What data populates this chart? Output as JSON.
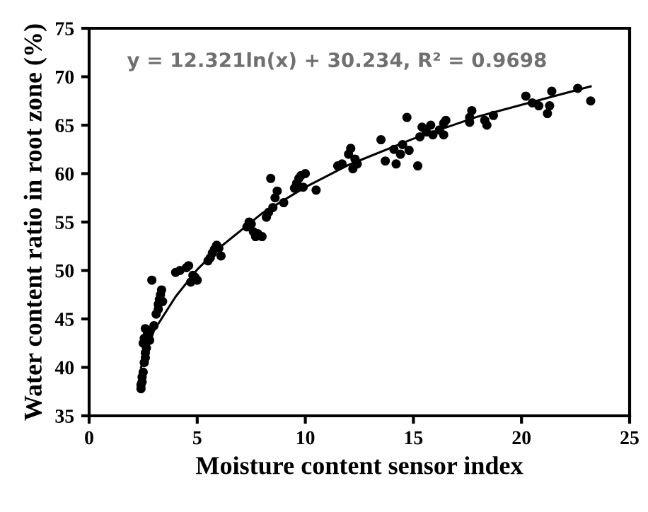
{
  "chart_data": {
    "type": "scatter",
    "xlabel": "Moisture content sensor index",
    "ylabel": "Water content ratio in root zone (%)",
    "annotations": [
      "y = 12.321ln(x) + 30.234, R² = 0.9698"
    ],
    "xlim": [
      0,
      25
    ],
    "ylim": [
      35,
      75
    ],
    "xticks": [
      0,
      5,
      10,
      15,
      20,
      25
    ],
    "yticks": [
      35,
      40,
      45,
      50,
      55,
      60,
      65,
      70,
      75
    ],
    "grid": false,
    "series": [
      {
        "color": "#000000",
        "marker": "circle",
        "x": [
          2.4,
          2.4,
          2.45,
          2.45,
          2.5,
          2.55,
          2.6,
          2.6,
          2.65,
          2.5,
          2.55,
          2.7,
          2.6,
          2.75,
          2.8,
          3.0,
          3.1,
          3.2,
          3.2,
          3.25,
          3.3,
          3.35,
          3.4,
          2.9,
          4.0,
          4.2,
          4.5,
          4.6,
          4.8,
          5.0,
          4.7,
          4.9,
          5.5,
          5.6,
          5.7,
          5.8,
          5.9,
          6.0,
          6.1,
          7.3,
          7.4,
          7.5,
          7.6,
          7.7,
          7.8,
          8.0,
          8.2,
          8.3,
          8.5,
          8.6,
          8.4,
          8.7,
          9.0,
          9.5,
          9.6,
          9.7,
          9.8,
          10.0,
          9.9,
          10.5,
          11.5,
          11.7,
          12.0,
          12.1,
          12.3,
          12.2,
          12.4,
          13.5,
          13.7,
          14.1,
          14.2,
          14.4,
          14.5,
          14.7,
          14.8,
          15.2,
          15.3,
          15.4,
          15.6,
          15.8,
          15.9,
          16.2,
          16.4,
          16.5,
          16.4,
          17.6,
          17.6,
          17.7,
          18.3,
          18.4,
          18.7,
          20.2,
          20.5,
          20.8,
          21.2,
          21.3,
          21.4,
          22.6,
          23.2
        ],
        "values": [
          37.8,
          38.2,
          38.5,
          39.0,
          39.5,
          40.5,
          41.0,
          41.5,
          42.0,
          42.5,
          43.0,
          43.5,
          44.0,
          43.8,
          42.8,
          44.3,
          45.5,
          46.0,
          46.5,
          47.0,
          47.5,
          48.0,
          46.8,
          49.0,
          49.8,
          50.0,
          50.3,
          50.5,
          49.5,
          49.0,
          48.8,
          49.3,
          51.0,
          51.3,
          51.8,
          52.2,
          52.6,
          52.3,
          51.5,
          54.5,
          55.0,
          54.8,
          54.0,
          53.5,
          53.8,
          53.5,
          55.5,
          56.0,
          56.5,
          57.5,
          59.5,
          58.2,
          57.0,
          58.5,
          59.0,
          59.5,
          59.8,
          60.0,
          58.6,
          58.3,
          60.8,
          61.0,
          62.0,
          62.6,
          61.5,
          60.5,
          61.0,
          63.5,
          61.3,
          62.5,
          61.0,
          62.0,
          63.0,
          65.8,
          62.4,
          60.8,
          63.8,
          64.8,
          64.3,
          65.0,
          64.0,
          64.5,
          65.2,
          65.5,
          64.0,
          65.8,
          65.3,
          66.5,
          65.5,
          65.0,
          66.0,
          68.0,
          67.3,
          67.0,
          66.2,
          67.0,
          68.5,
          68.8,
          67.5
        ]
      },
      {
        "type": "line",
        "color": "#000000",
        "marker": "none",
        "x": [
          2.4,
          3,
          4,
          5,
          6,
          8,
          10,
          12,
          15,
          18,
          20,
          23.2
        ],
        "values": [
          40.0,
          43.8,
          47.3,
          50.1,
          52.3,
          55.9,
          58.6,
          60.9,
          63.6,
          65.9,
          67.1,
          69.0
        ]
      }
    ]
  }
}
